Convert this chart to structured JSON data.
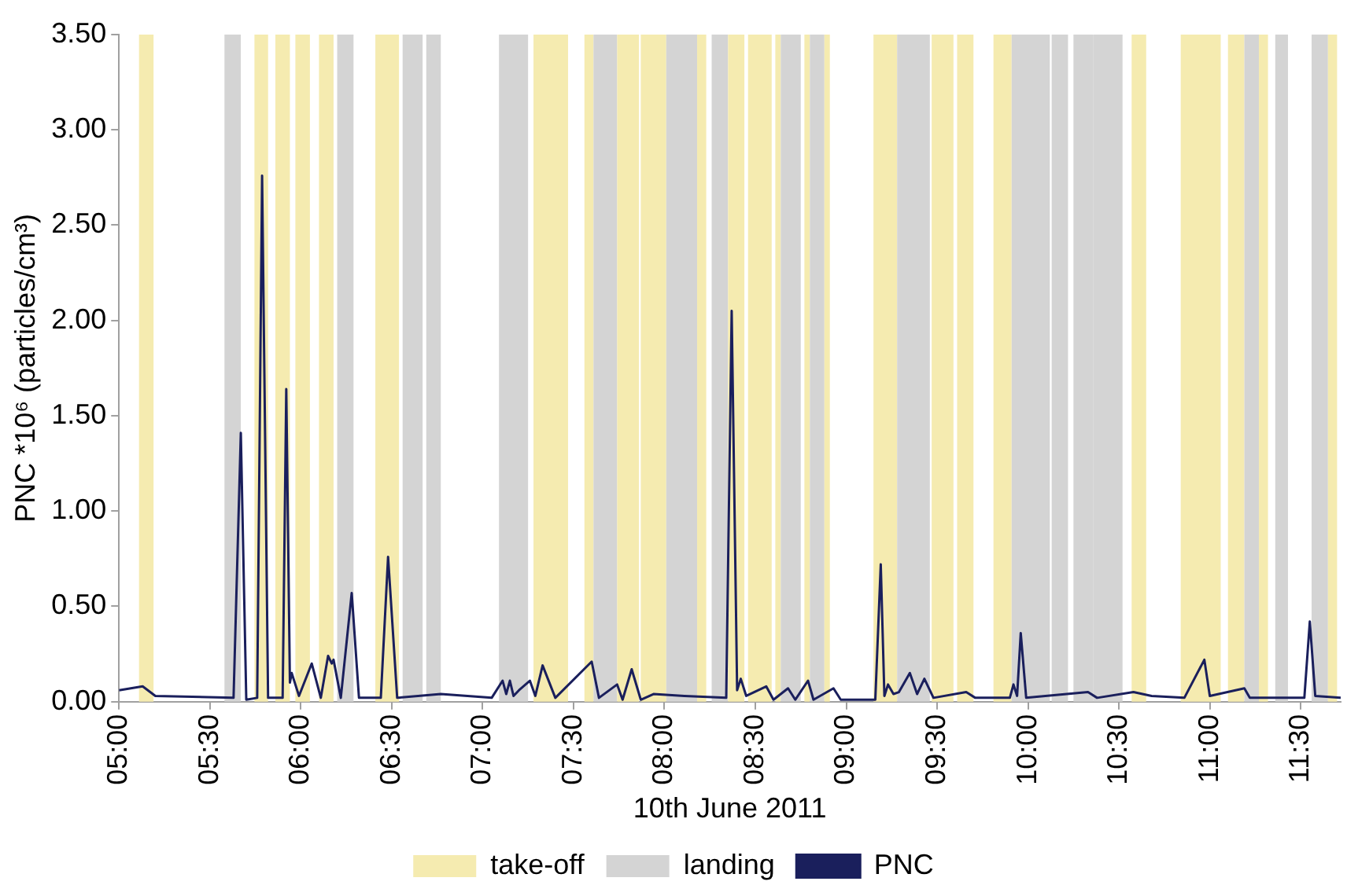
{
  "chart_data": {
    "type": "line",
    "xlabel": "10th June 2011",
    "ylabel": "PNC *10⁶ (particles/cm³)",
    "xlim": [
      5,
      11.72
    ],
    "xticks": [
      {
        "value": 5,
        "label": "05:00"
      },
      {
        "value": 5.5,
        "label": "05:30"
      },
      {
        "value": 6,
        "label": "06:00"
      },
      {
        "value": 6.5,
        "label": "06:30"
      },
      {
        "value": 7,
        "label": "07:00"
      },
      {
        "value": 7.5,
        "label": "07:30"
      },
      {
        "value": 8,
        "label": "08:00"
      },
      {
        "value": 8.5,
        "label": "08:30"
      },
      {
        "value": 9,
        "label": "09:00"
      },
      {
        "value": 9.5,
        "label": "09:30"
      },
      {
        "value": 10,
        "label": "10:00"
      },
      {
        "value": 10.5,
        "label": "10:30"
      },
      {
        "value": 11,
        "label": "11:00"
      },
      {
        "value": 11.5,
        "label": "11:30"
      }
    ],
    "ylim": [
      0,
      3.5
    ],
    "yticks": [
      {
        "value": 0,
        "label": "0.00"
      },
      {
        "value": 0.5,
        "label": "0.50"
      },
      {
        "value": 1,
        "label": "1.00"
      },
      {
        "value": 1.5,
        "label": "1.50"
      },
      {
        "value": 2,
        "label": "2.00"
      },
      {
        "value": 2.5,
        "label": "2.50"
      },
      {
        "value": 3,
        "label": "3.00"
      },
      {
        "value": 3.5,
        "label": "3.50"
      }
    ],
    "grid": false,
    "legend": "bottom",
    "marker": "none",
    "line_style": "solid",
    "series": [
      {
        "name": "PNC",
        "color": "#1a1f5c",
        "x": [
          5,
          5.13,
          5.2,
          5.63,
          5.67,
          5.7,
          5.76,
          5.787,
          5.82,
          5.9,
          5.92,
          5.94,
          5.95,
          5.99,
          6.06,
          6.11,
          6.15,
          6.17,
          6.18,
          6.22,
          6.28,
          6.32,
          6.44,
          6.48,
          6.53,
          6.77,
          7.05,
          7.11,
          7.13,
          7.15,
          7.17,
          7.2,
          7.26,
          7.29,
          7.33,
          7.4,
          7.6,
          7.64,
          7.74,
          7.77,
          7.82,
          7.87,
          7.94,
          8.11,
          8.34,
          8.37,
          8.4,
          8.42,
          8.45,
          8.56,
          8.6,
          8.68,
          8.72,
          8.79,
          8.82,
          8.93,
          8.97,
          9.16,
          9.19,
          9.21,
          9.23,
          9.26,
          9.29,
          9.35,
          9.39,
          9.43,
          9.48,
          9.66,
          9.71,
          9.9,
          9.92,
          9.94,
          9.96,
          9.99,
          10.33,
          10.38,
          10.58,
          10.68,
          10.86,
          10.97,
          11,
          11.19,
          11.22,
          11.39,
          11.52,
          11.55,
          11.58,
          11.72
        ],
        "values": [
          0.06,
          0.08,
          0.03,
          0.02,
          1.41,
          0.01,
          0.02,
          2.76,
          0.02,
          0.02,
          1.64,
          0.1,
          0.15,
          0.03,
          0.2,
          0.02,
          0.24,
          0.2,
          0.22,
          0.02,
          0.57,
          0.02,
          0.02,
          0.76,
          0.02,
          0.04,
          0.02,
          0.11,
          0.04,
          0.11,
          0.03,
          0.06,
          0.11,
          0.03,
          0.19,
          0.02,
          0.21,
          0.02,
          0.09,
          0.01,
          0.17,
          0.01,
          0.04,
          0.03,
          0.02,
          2.05,
          0.06,
          0.12,
          0.03,
          0.08,
          0.01,
          0.07,
          0.01,
          0.11,
          0.01,
          0.07,
          0.01,
          0.01,
          0.72,
          0.03,
          0.09,
          0.04,
          0.05,
          0.15,
          0.04,
          0.12,
          0.02,
          0.05,
          0.02,
          0.02,
          0.09,
          0.03,
          0.36,
          0.02,
          0.05,
          0.02,
          0.05,
          0.03,
          0.02,
          0.22,
          0.03,
          0.07,
          0.02,
          0.02,
          0.02,
          0.42,
          0.03,
          0.02
        ]
      }
    ],
    "bands": [
      {
        "axis": "x",
        "from": 5.11,
        "to": 5.19,
        "label": "take-off",
        "color": "#f5ebb0"
      },
      {
        "axis": "x",
        "from": 5.58,
        "to": 5.67,
        "label": "landing",
        "color": "#d4d4d4"
      },
      {
        "axis": "x",
        "from": 5.745,
        "to": 5.82,
        "color": "#f5ebb0"
      },
      {
        "axis": "x",
        "from": 5.86,
        "to": 5.94,
        "color": "#f5ebb0"
      },
      {
        "axis": "x",
        "from": 5.97,
        "to": 6.05,
        "color": "#f5ebb0"
      },
      {
        "axis": "x",
        "from": 6.1,
        "to": 6.18,
        "color": "#f5ebb0"
      },
      {
        "axis": "x",
        "from": 6.2,
        "to": 6.29,
        "color": "#d4d4d4"
      },
      {
        "axis": "x",
        "from": 6.41,
        "to": 6.54,
        "color": "#f5ebb0"
      },
      {
        "axis": "x",
        "from": 6.56,
        "to": 6.67,
        "color": "#d4d4d4"
      },
      {
        "axis": "x",
        "from": 6.69,
        "to": 6.77,
        "color": "#d4d4d4"
      },
      {
        "axis": "x",
        "from": 7.09,
        "to": 7.25,
        "color": "#d4d4d4"
      },
      {
        "axis": "x",
        "from": 7.28,
        "to": 7.47,
        "color": "#f5ebb0"
      },
      {
        "axis": "x",
        "from": 7.56,
        "to": 7.61,
        "color": "#f5ebb0"
      },
      {
        "axis": "x",
        "from": 7.61,
        "to": 7.74,
        "color": "#d4d4d4"
      },
      {
        "axis": "x",
        "from": 7.74,
        "to": 7.86,
        "color": "#f5ebb0"
      },
      {
        "axis": "x",
        "from": 7.87,
        "to": 8.01,
        "color": "#f5ebb0"
      },
      {
        "axis": "x",
        "from": 8.01,
        "to": 8.18,
        "color": "#d4d4d4"
      },
      {
        "axis": "x",
        "from": 8.18,
        "to": 8.23,
        "color": "#f5ebb0"
      },
      {
        "axis": "x",
        "from": 8.26,
        "to": 8.35,
        "color": "#d4d4d4"
      },
      {
        "axis": "x",
        "from": 8.35,
        "to": 8.44,
        "color": "#f5ebb0"
      },
      {
        "axis": "x",
        "from": 8.46,
        "to": 8.59,
        "color": "#f5ebb0"
      },
      {
        "axis": "x",
        "from": 8.61,
        "to": 8.64,
        "color": "#f5ebb0"
      },
      {
        "axis": "x",
        "from": 8.64,
        "to": 8.75,
        "color": "#d4d4d4"
      },
      {
        "axis": "x",
        "from": 8.77,
        "to": 8.8,
        "color": "#f5ebb0"
      },
      {
        "axis": "x",
        "from": 8.8,
        "to": 8.88,
        "color": "#d4d4d4"
      },
      {
        "axis": "x",
        "from": 8.88,
        "to": 8.91,
        "color": "#f5ebb0"
      },
      {
        "axis": "x",
        "from": 9.15,
        "to": 9.28,
        "color": "#f5ebb0"
      },
      {
        "axis": "x",
        "from": 9.28,
        "to": 9.46,
        "color": "#d4d4d4"
      },
      {
        "axis": "x",
        "from": 9.47,
        "to": 9.59,
        "color": "#f5ebb0"
      },
      {
        "axis": "x",
        "from": 9.61,
        "to": 9.7,
        "color": "#f5ebb0"
      },
      {
        "axis": "x",
        "from": 9.81,
        "to": 9.91,
        "color": "#f5ebb0"
      },
      {
        "axis": "x",
        "from": 9.91,
        "to": 10.12,
        "color": "#d4d4d4"
      },
      {
        "axis": "x",
        "from": 10.13,
        "to": 10.22,
        "color": "#d4d4d4"
      },
      {
        "axis": "x",
        "from": 10.25,
        "to": 10.36,
        "color": "#d4d4d4"
      },
      {
        "axis": "x",
        "from": 10.36,
        "to": 10.52,
        "color": "#d4d4d4"
      },
      {
        "axis": "x",
        "from": 10.57,
        "to": 10.65,
        "color": "#f5ebb0"
      },
      {
        "axis": "x",
        "from": 10.84,
        "to": 11.06,
        "color": "#f5ebb0"
      },
      {
        "axis": "x",
        "from": 11.1,
        "to": 11.19,
        "color": "#f5ebb0"
      },
      {
        "axis": "x",
        "from": 11.19,
        "to": 11.27,
        "color": "#d4d4d4"
      },
      {
        "axis": "x",
        "from": 11.27,
        "to": 11.32,
        "color": "#f5ebb0"
      },
      {
        "axis": "x",
        "from": 11.36,
        "to": 11.43,
        "color": "#d4d4d4"
      },
      {
        "axis": "x",
        "from": 11.56,
        "to": 11.65,
        "color": "#d4d4d4"
      },
      {
        "axis": "x",
        "from": 11.65,
        "to": 11.7,
        "color": "#f5ebb0"
      }
    ]
  }
}
